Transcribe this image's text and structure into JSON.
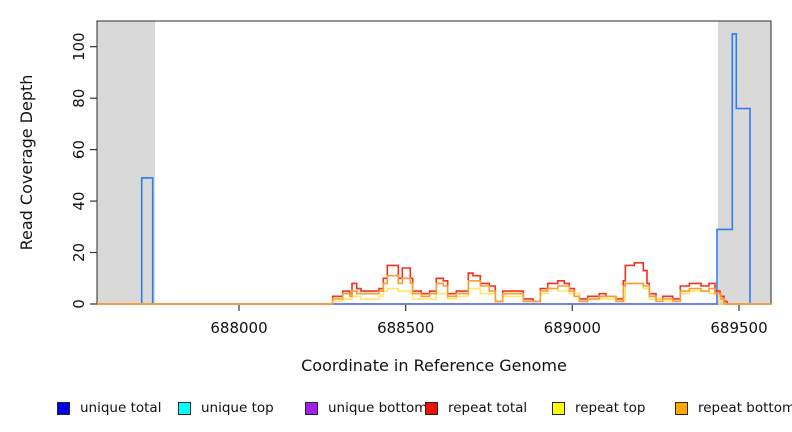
{
  "chart_data": {
    "type": "line",
    "subtype": "step",
    "title": "",
    "xlabel": "Coordinate in Reference Genome",
    "ylabel": "Read Coverage Depth",
    "xlim": [
      687574,
      689596
    ],
    "ylim": [
      0,
      110
    ],
    "grid": false,
    "legend_position": "bottom",
    "x_ticks": [
      688000,
      688500,
      689000,
      689500
    ],
    "x_tick_labels": [
      "688000",
      "688500",
      "689000",
      "689500"
    ],
    "y_ticks": [
      0,
      20,
      40,
      60,
      80,
      100
    ],
    "y_tick_labels": [
      "0",
      "20",
      "40",
      "60",
      "80",
      "100"
    ],
    "shaded_regions": [
      {
        "from": 687574,
        "to": 687748,
        "color": "#d9d9d9"
      },
      {
        "from": 689437,
        "to": 689596,
        "color": "#d9d9d9"
      }
    ],
    "frame_color": "#4d4d4d",
    "tick_color": "#333333",
    "text_color": "#111111",
    "series": [
      {
        "name": "unique total",
        "line_color": "#2e7bee",
        "legend_color": "#0000e6",
        "points": [
          [
            687574,
            0
          ],
          [
            687708,
            49
          ],
          [
            687741,
            0
          ],
          [
            689434,
            29
          ],
          [
            689480,
            105
          ],
          [
            689492,
            76
          ],
          [
            689533,
            0
          ]
        ]
      },
      {
        "name": "unique top",
        "line_color": "#00e5ee",
        "legend_color": "#00ffff",
        "points": [
          [
            687574,
            0
          ]
        ]
      },
      {
        "name": "unique bottom",
        "line_color": "#7d6cf0",
        "legend_color": "#a020f0",
        "points": [
          [
            687574,
            0
          ]
        ]
      },
      {
        "name": "repeat total",
        "line_color": "#f5301c",
        "legend_color": "#ee1100",
        "points": [
          [
            687574,
            0
          ],
          [
            688281,
            3
          ],
          [
            688311,
            5
          ],
          [
            688332,
            4
          ],
          [
            688339,
            8
          ],
          [
            688353,
            6
          ],
          [
            688366,
            5
          ],
          [
            688420,
            6
          ],
          [
            688433,
            10
          ],
          [
            688445,
            15
          ],
          [
            688478,
            10
          ],
          [
            688490,
            14
          ],
          [
            688514,
            10
          ],
          [
            688521,
            5
          ],
          [
            688547,
            4
          ],
          [
            688572,
            5
          ],
          [
            688592,
            10
          ],
          [
            688613,
            9
          ],
          [
            688626,
            4
          ],
          [
            688652,
            5
          ],
          [
            688688,
            12
          ],
          [
            688702,
            11
          ],
          [
            688724,
            8
          ],
          [
            688751,
            7
          ],
          [
            688769,
            1
          ],
          [
            688791,
            5
          ],
          [
            688853,
            2
          ],
          [
            688882,
            1
          ],
          [
            688904,
            6
          ],
          [
            688926,
            8
          ],
          [
            688956,
            9
          ],
          [
            688976,
            8
          ],
          [
            688991,
            6
          ],
          [
            689006,
            4
          ],
          [
            689021,
            2
          ],
          [
            689046,
            3
          ],
          [
            689081,
            4
          ],
          [
            689101,
            3
          ],
          [
            689131,
            2
          ],
          [
            689153,
            9
          ],
          [
            689159,
            15
          ],
          [
            689186,
            16
          ],
          [
            689213,
            13
          ],
          [
            689224,
            8
          ],
          [
            689231,
            4
          ],
          [
            689251,
            2
          ],
          [
            689271,
            3
          ],
          [
            689301,
            2
          ],
          [
            689324,
            7
          ],
          [
            689351,
            8
          ],
          [
            689386,
            7
          ],
          [
            689410,
            8
          ],
          [
            689428,
            5
          ],
          [
            689443,
            3
          ],
          [
            689455,
            1
          ],
          [
            689464,
            0
          ]
        ]
      },
      {
        "name": "repeat top",
        "line_color": "#ffe76b",
        "legend_color": "#ffff00",
        "points": [
          [
            687574,
            0
          ],
          [
            688281,
            1
          ],
          [
            688311,
            2
          ],
          [
            688339,
            3
          ],
          [
            688366,
            2
          ],
          [
            688420,
            3
          ],
          [
            688433,
            5
          ],
          [
            688445,
            6
          ],
          [
            688478,
            5
          ],
          [
            688514,
            4
          ],
          [
            688521,
            2
          ],
          [
            688547,
            2
          ],
          [
            688592,
            4
          ],
          [
            688626,
            2
          ],
          [
            688652,
            3
          ],
          [
            688688,
            6
          ],
          [
            688724,
            4
          ],
          [
            688769,
            1
          ],
          [
            688791,
            3
          ],
          [
            688853,
            1
          ],
          [
            688904,
            4
          ],
          [
            688926,
            6
          ],
          [
            688956,
            5
          ],
          [
            688991,
            4
          ],
          [
            689021,
            1
          ],
          [
            689046,
            2
          ],
          [
            689131,
            1
          ],
          [
            689159,
            8
          ],
          [
            689213,
            6
          ],
          [
            689231,
            2
          ],
          [
            689271,
            1
          ],
          [
            689324,
            4
          ],
          [
            689351,
            5
          ],
          [
            689410,
            4
          ],
          [
            689440,
            0
          ]
        ]
      },
      {
        "name": "repeat bottom",
        "line_color": "#fb9d32",
        "legend_color": "#ffa500",
        "points": [
          [
            687574,
            0
          ],
          [
            688281,
            2
          ],
          [
            688311,
            4
          ],
          [
            688332,
            3
          ],
          [
            688339,
            5
          ],
          [
            688353,
            4
          ],
          [
            688420,
            5
          ],
          [
            688433,
            8
          ],
          [
            688445,
            11
          ],
          [
            688478,
            8
          ],
          [
            688490,
            10
          ],
          [
            688514,
            8
          ],
          [
            688521,
            4
          ],
          [
            688547,
            3
          ],
          [
            688572,
            4
          ],
          [
            688592,
            8
          ],
          [
            688613,
            7
          ],
          [
            688626,
            3
          ],
          [
            688652,
            4
          ],
          [
            688688,
            9
          ],
          [
            688724,
            7
          ],
          [
            688751,
            5
          ],
          [
            688769,
            1
          ],
          [
            688791,
            4
          ],
          [
            688853,
            1
          ],
          [
            688904,
            5
          ],
          [
            688926,
            6
          ],
          [
            688956,
            7
          ],
          [
            688991,
            5
          ],
          [
            689006,
            3
          ],
          [
            689021,
            1
          ],
          [
            689046,
            2
          ],
          [
            689081,
            3
          ],
          [
            689131,
            1
          ],
          [
            689153,
            7
          ],
          [
            689159,
            8
          ],
          [
            689213,
            7
          ],
          [
            689231,
            3
          ],
          [
            689251,
            1
          ],
          [
            689271,
            2
          ],
          [
            689301,
            1
          ],
          [
            689324,
            5
          ],
          [
            689351,
            6
          ],
          [
            689386,
            5
          ],
          [
            689410,
            6
          ],
          [
            689428,
            4
          ],
          [
            689446,
            2
          ],
          [
            689455,
            0
          ]
        ]
      }
    ]
  },
  "legend": {
    "swatch_border_color": "#262626"
  }
}
